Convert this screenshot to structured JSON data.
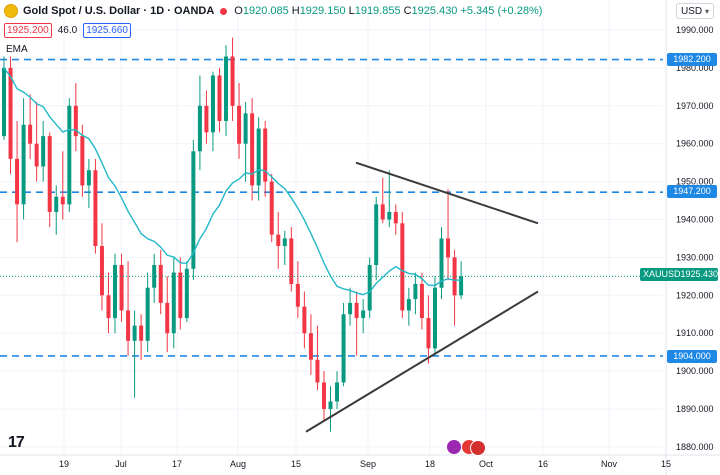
{
  "header": {
    "symbol": "Gold Spot / U.S. Dollar · 1D · OANDA",
    "ohlc": [
      {
        "k": "O",
        "v": "1920.085"
      },
      {
        "k": "H",
        "v": "1929.150"
      },
      {
        "k": "L",
        "v": "1919.855"
      },
      {
        "k": "C",
        "v": "1925.430"
      }
    ],
    "change": "+5.345 (+0.28%)",
    "sell_price": "1925.200",
    "spread": "46.0",
    "buy_price": "1925.660",
    "currency": "USD"
  },
  "indicator": "EMA",
  "price_axis": {
    "ticks": [
      "1990.000",
      "1980.000",
      "1970.000",
      "1960.000",
      "1950.000",
      "1940.000",
      "1930.000",
      "1920.000",
      "1910.000",
      "1900.000",
      "1890.000",
      "1880.000"
    ]
  },
  "time_axis": {
    "labels": [
      "19",
      "Jul",
      "17",
      "Aug",
      "15",
      "Sep",
      "18",
      "Oct",
      "16",
      "Nov",
      "15"
    ]
  },
  "price_labels": {
    "level_1": "1982.200",
    "level_2": "1947.200",
    "current_symbol": "XAUUSD",
    "current_price": "1925.430",
    "level_3": "1904.000"
  },
  "colors": {
    "up": "#089981",
    "down": "#f23645",
    "ema": "#22b8c7",
    "level_line": "#1e88e5",
    "trend_line": "#3a3a3a",
    "symbol_label": "#089981"
  },
  "chart_data": {
    "type": "candlestick",
    "interval": "1D",
    "y_range": [
      1877,
      1996
    ],
    "horizontal_levels": [
      1982.2,
      1947.2,
      1904.0
    ],
    "candles_ohlc": [
      [
        1962,
        1983,
        1961,
        1980
      ],
      [
        1980,
        1983,
        1952,
        1956
      ],
      [
        1956,
        1966,
        1934,
        1944
      ],
      [
        1944,
        1972,
        1940,
        1965
      ],
      [
        1965,
        1973,
        1956,
        1960
      ],
      [
        1960,
        1971,
        1950,
        1954
      ],
      [
        1954,
        1966,
        1950,
        1962
      ],
      [
        1962,
        1963,
        1938,
        1942
      ],
      [
        1942,
        1949,
        1936,
        1946
      ],
      [
        1946,
        1958,
        1940,
        1944
      ],
      [
        1944,
        1972,
        1942,
        1970
      ],
      [
        1970,
        1976,
        1958,
        1962
      ],
      [
        1962,
        1965,
        1946,
        1949
      ],
      [
        1949,
        1956,
        1943,
        1953
      ],
      [
        1953,
        1956,
        1931,
        1933
      ],
      [
        1933,
        1939,
        1916,
        1920
      ],
      [
        1920,
        1926,
        1910,
        1914
      ],
      [
        1914,
        1931,
        1910,
        1928
      ],
      [
        1928,
        1931,
        1913,
        1916
      ],
      [
        1916,
        1929,
        1904,
        1908
      ],
      [
        1908,
        1916,
        1893,
        1912
      ],
      [
        1912,
        1915,
        1903,
        1908
      ],
      [
        1908,
        1926,
        1905,
        1922
      ],
      [
        1922,
        1931,
        1918,
        1928
      ],
      [
        1928,
        1932,
        1915,
        1918
      ],
      [
        1918,
        1925,
        1905,
        1910
      ],
      [
        1910,
        1930,
        1906,
        1926
      ],
      [
        1926,
        1930,
        1911,
        1914
      ],
      [
        1914,
        1929,
        1913,
        1927
      ],
      [
        1927,
        1961,
        1924,
        1958
      ],
      [
        1958,
        1978,
        1953,
        1970
      ],
      [
        1970,
        1974,
        1960,
        1963
      ],
      [
        1963,
        1979,
        1958,
        1978
      ],
      [
        1978,
        1980,
        1963,
        1966
      ],
      [
        1966,
        1986,
        1962,
        1983
      ],
      [
        1983,
        1988,
        1966,
        1970
      ],
      [
        1970,
        1976,
        1956,
        1960
      ],
      [
        1960,
        1971,
        1950,
        1968
      ],
      [
        1968,
        1972,
        1945,
        1949
      ],
      [
        1949,
        1967,
        1945,
        1964
      ],
      [
        1964,
        1966,
        1946,
        1950
      ],
      [
        1950,
        1952,
        1934,
        1936
      ],
      [
        1936,
        1942,
        1927,
        1933
      ],
      [
        1933,
        1937,
        1928,
        1935
      ],
      [
        1935,
        1938,
        1921,
        1923
      ],
      [
        1923,
        1929,
        1914,
        1917
      ],
      [
        1917,
        1921,
        1906,
        1910
      ],
      [
        1910,
        1915,
        1899,
        1903
      ],
      [
        1903,
        1912,
        1895,
        1897
      ],
      [
        1897,
        1900,
        1887,
        1890
      ],
      [
        1890,
        1896,
        1884,
        1892
      ],
      [
        1892,
        1900,
        1890,
        1897
      ],
      [
        1897,
        1918,
        1896,
        1915
      ],
      [
        1915,
        1922,
        1912,
        1918
      ],
      [
        1918,
        1921,
        1904,
        1914
      ],
      [
        1914,
        1919,
        1910,
        1916
      ],
      [
        1916,
        1930,
        1914,
        1928
      ],
      [
        1928,
        1946,
        1924,
        1944
      ],
      [
        1944,
        1951,
        1939,
        1940
      ],
      [
        1940,
        1953,
        1938,
        1942
      ],
      [
        1942,
        1944,
        1936,
        1939
      ],
      [
        1939,
        1942,
        1914,
        1916
      ],
      [
        1916,
        1922,
        1912,
        1919
      ],
      [
        1919,
        1926,
        1915,
        1923
      ],
      [
        1923,
        1926,
        1911,
        1914
      ],
      [
        1914,
        1920,
        1902,
        1906
      ],
      [
        1906,
        1925,
        1904,
        1922
      ],
      [
        1922,
        1938,
        1919,
        1935
      ],
      [
        1935,
        1948,
        1924,
        1930
      ],
      [
        1930,
        1932,
        1912,
        1920
      ],
      [
        1920,
        1929,
        1919,
        1925
      ]
    ],
    "ema_visible": true,
    "trendlines": [
      {
        "from": [
          1955.0,
          "Aug 29"
        ],
        "to": [
          1939.0,
          "Oct 12"
        ]
      },
      {
        "from": [
          1884.0,
          "Aug 18"
        ],
        "to": [
          1921.0,
          "Oct 12"
        ]
      }
    ]
  }
}
